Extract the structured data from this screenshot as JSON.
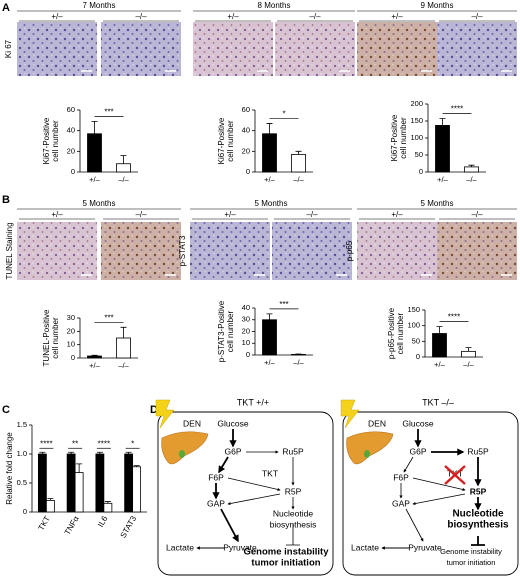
{
  "panel_a": {
    "letter": "A",
    "row_label": "Ki 67",
    "groups": [
      {
        "title": "7 Months",
        "genotypes": [
          "+/–",
          "–/–"
        ]
      },
      {
        "title": "8 Months",
        "genotypes": [
          "+/–",
          "–/–"
        ]
      },
      {
        "title": "9 Months",
        "genotypes": [
          "+/–",
          "–/–"
        ]
      }
    ]
  },
  "panel_b": {
    "letter": "B",
    "groups": [
      {
        "row_label": "TUNEL Staining",
        "title": "5 Months",
        "genotypes": [
          "+/–",
          "–/–"
        ]
      },
      {
        "row_label": "p-STAT3",
        "title": "5 Months",
        "genotypes": [
          "+/–",
          "–/–"
        ]
      },
      {
        "row_label": "p-p65",
        "title": "5 Months",
        "genotypes": [
          "+/–",
          "–/–"
        ]
      }
    ]
  },
  "panel_c": {
    "letter": "C"
  },
  "panel_d": {
    "letter": "D",
    "diagrams": [
      {
        "title": "TKT +/+",
        "den": "DEN",
        "glucose": "Glucose",
        "g6p": "G6P",
        "ru5p": "Ru5P",
        "f6p": "F6P",
        "tkt": "TKT",
        "r5p": "R5P",
        "gap": "GAP",
        "nucleotide": [
          "Nucleotide",
          "biosynthesis"
        ],
        "lactate": "Lactate",
        "pyruvate": "Pyruvate",
        "outcome": [
          "Genome instability",
          "tumor initiation"
        ]
      },
      {
        "title": "TKT –/–",
        "den": "DEN",
        "glucose": "Glucose",
        "g6p": "G6P",
        "ru5p": "Ru5P",
        "f6p": "F6P",
        "tkt": "TKT",
        "r5p": "R5P",
        "gap": "GAP",
        "nucleotide": [
          "Nucleotide",
          "biosynthesis"
        ],
        "lactate": "Lactate",
        "pyruvate": "Pyruvate",
        "outcome": [
          "Genome instability",
          "tumor initiation"
        ]
      }
    ]
  },
  "chart_data": [
    {
      "type": "bar",
      "ylabel": [
        "Ki67-Positive",
        "cell number"
      ],
      "categories": [
        "+/–",
        "–/–"
      ],
      "values": [
        37,
        8
      ],
      "errors": [
        12,
        8
      ],
      "colors": [
        "#000000",
        "#ffffff"
      ],
      "ylim": [
        0,
        60
      ],
      "yticks": [
        0,
        20,
        40,
        60
      ],
      "significance": "***"
    },
    {
      "type": "bar",
      "ylabel": [
        "Ki67-Positive",
        "cell number"
      ],
      "categories": [
        "+/–",
        "–/–"
      ],
      "values": [
        37,
        17
      ],
      "errors": [
        10,
        3
      ],
      "colors": [
        "#000000",
        "#ffffff"
      ],
      "ylim": [
        0,
        60
      ],
      "yticks": [
        0,
        20,
        40,
        60
      ],
      "significance": "*"
    },
    {
      "type": "bar",
      "ylabel": [
        "Ki67-Positive",
        "cell number"
      ],
      "categories": [
        "+/–",
        "–/–"
      ],
      "values": [
        137,
        15
      ],
      "errors": [
        20,
        5
      ],
      "colors": [
        "#000000",
        "#ffffff"
      ],
      "ylim": [
        0,
        200
      ],
      "yticks": [
        0,
        50,
        100,
        150,
        200
      ],
      "significance": "****"
    },
    {
      "type": "bar",
      "ylabel": [
        "TUNEL-Positive",
        "cell number"
      ],
      "categories": [
        "+/–",
        "–/–"
      ],
      "values": [
        1.5,
        15
      ],
      "errors": [
        0.5,
        8
      ],
      "colors": [
        "#000000",
        "#ffffff"
      ],
      "ylim": [
        0,
        30
      ],
      "yticks": [
        0,
        10,
        20,
        30
      ],
      "significance": "***"
    },
    {
      "type": "bar",
      "ylabel": [
        "p-STAT3-Positive",
        "cell number"
      ],
      "categories": [
        "+/–",
        "–/–"
      ],
      "values": [
        30,
        0.5
      ],
      "errors": [
        5,
        0.3
      ],
      "colors": [
        "#000000",
        "#ffffff"
      ],
      "ylim": [
        0,
        40
      ],
      "yticks": [
        0,
        10,
        20,
        30,
        40
      ],
      "significance": "***"
    },
    {
      "type": "bar",
      "ylabel": [
        "p-p65-Positive",
        "cell number"
      ],
      "categories": [
        "+/–",
        "–/–"
      ],
      "values": [
        75,
        18
      ],
      "errors": [
        22,
        12
      ],
      "colors": [
        "#000000",
        "#ffffff"
      ],
      "ylim": [
        0,
        150
      ],
      "yticks": [
        0,
        50,
        100,
        150
      ],
      "significance": "****"
    },
    {
      "type": "grouped_bar",
      "ylabel": "Relative fold change",
      "categories": [
        "TKT",
        "TNFα",
        "IL6",
        "STAT3"
      ],
      "series": [
        {
          "color": "#000000",
          "values": [
            1,
            1,
            1,
            1
          ],
          "errors": [
            0.03,
            0.03,
            0.03,
            0.03
          ]
        },
        {
          "color": "#ffffff",
          "values": [
            0.2,
            0.68,
            0.15,
            0.78
          ],
          "errors": [
            0.03,
            0.15,
            0.03,
            0.02
          ]
        }
      ],
      "ylim": [
        0,
        1.5
      ],
      "yticks": [
        0,
        0.5,
        {
          "value": 1,
          "label": "1.0"
        },
        1.5
      ],
      "significance": [
        "****",
        "**",
        "****",
        "*"
      ]
    }
  ]
}
